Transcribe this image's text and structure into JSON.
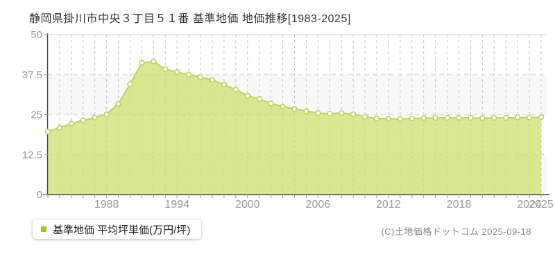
{
  "title": "静岡県掛川市中央３丁目５１番 基準地価 地価推移[1983-2025]",
  "legend": {
    "label": "基準地価 平均坪単価(万円/坪)",
    "bullet_color": "#a2c716"
  },
  "copyright": "(C)土地価格ドットコム 2025-09-18",
  "chart_data": {
    "type": "area",
    "title": "静岡県掛川市中央３丁目５１番 基準地価 地価推移[1983-2025]",
    "xlabel": "",
    "ylabel": "平均坪単価(万円/坪)",
    "x": [
      1983,
      1984,
      1985,
      1986,
      1987,
      1988,
      1989,
      1990,
      1991,
      1992,
      1993,
      1994,
      1995,
      1996,
      1997,
      1998,
      1999,
      2000,
      2001,
      2002,
      2003,
      2004,
      2005,
      2006,
      2007,
      2008,
      2009,
      2010,
      2011,
      2012,
      2013,
      2014,
      2015,
      2016,
      2017,
      2018,
      2019,
      2020,
      2021,
      2022,
      2023,
      2024,
      2025
    ],
    "series": [
      {
        "name": "基準地価 平均坪単価(万円/坪)",
        "values": [
          19.7,
          20.9,
          22.2,
          23.2,
          24.1,
          25.1,
          28.4,
          34.5,
          41.2,
          41.6,
          39.2,
          38.3,
          37.5,
          36.7,
          35.8,
          34.4,
          32.8,
          30.9,
          29.9,
          28.5,
          27.5,
          26.8,
          26.1,
          25.5,
          25.3,
          25.5,
          25.1,
          24.3,
          23.8,
          23.7,
          23.6,
          23.8,
          23.9,
          24.0,
          24.0,
          24.0,
          24.0,
          23.9,
          24.0,
          24.0,
          24.1,
          24.1,
          24.2
        ]
      }
    ],
    "ylim": [
      0,
      50
    ],
    "y_ticks": [
      0,
      12.5,
      25,
      37.5,
      50
    ],
    "y_tick_labels": [
      "0",
      "12.5",
      "25",
      "37.5",
      "50"
    ],
    "x_tick_labeled_years": [
      1988,
      1994,
      2000,
      2006,
      2012,
      2018,
      2024,
      2025
    ],
    "grid": true,
    "legend_position": "bottom-left",
    "colors": {
      "area_fill": "rgba(205,226,112,0.75)",
      "line": "#b9d35e",
      "marker_fill": "#ffffff",
      "marker_stroke": "#b9d35e",
      "axis": "#4a4a4a",
      "v_grid": "#c6c6c6",
      "h_grid": "#e2e2e2",
      "band": "#f8f8f8",
      "tick_label": "#999999",
      "tick": "#999999",
      "title": "#333333"
    }
  }
}
